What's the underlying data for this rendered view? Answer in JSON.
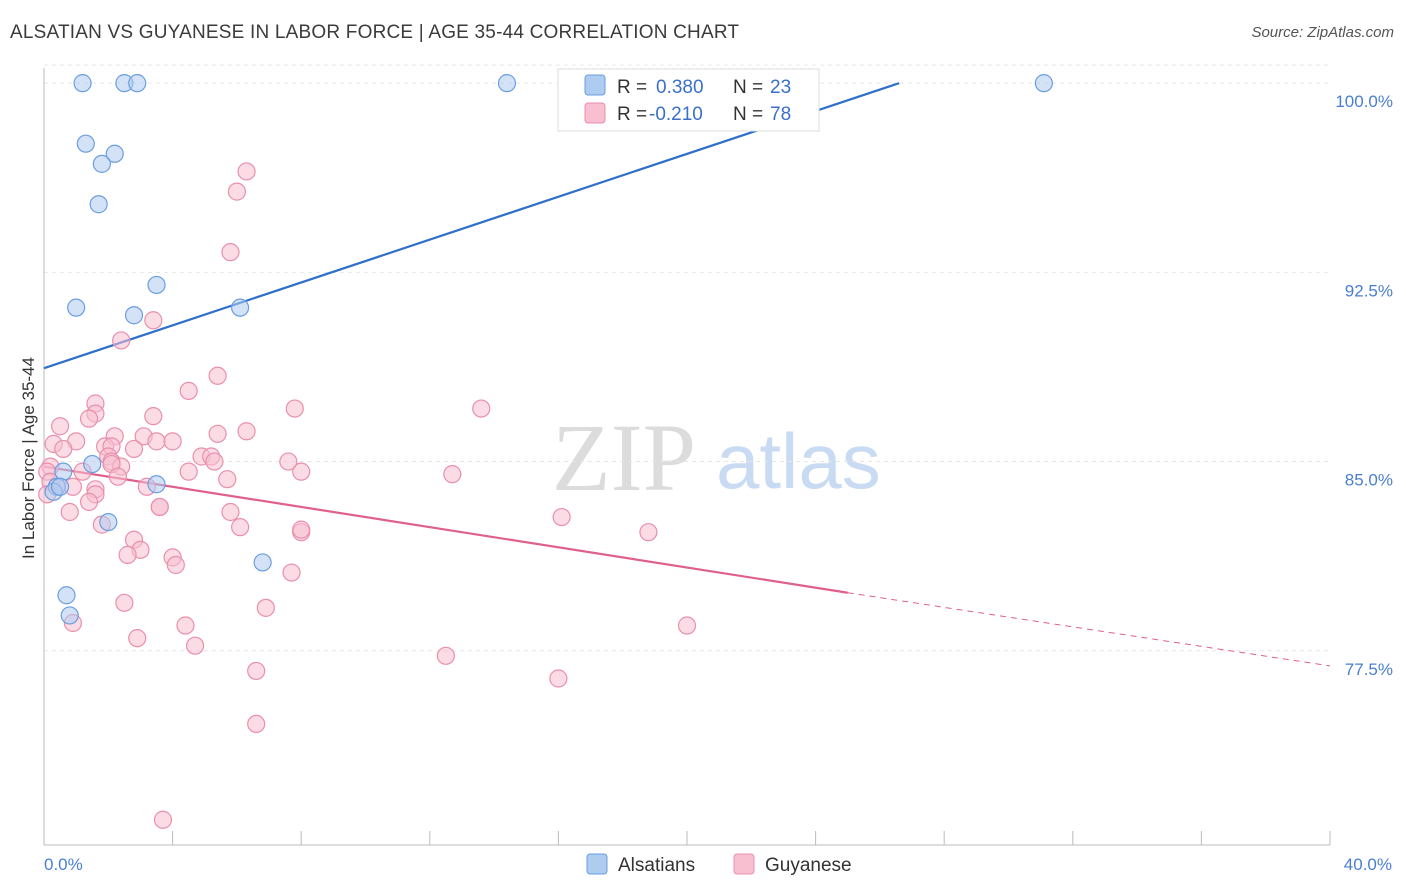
{
  "header": {
    "title": "ALSATIAN VS GUYANESE IN LABOR FORCE | AGE 35-44 CORRELATION CHART",
    "source": "Source: ZipAtlas.com"
  },
  "legend_top": {
    "r_label": "R =",
    "n_label": "N =",
    "series": [
      {
        "r": "0.380",
        "n": "23"
      },
      {
        "r": "-0.210",
        "n": "78"
      }
    ]
  },
  "watermark": {
    "zip": "ZIP",
    "atlas": "atlas"
  },
  "colors": {
    "blue_fill": "#aecbf0",
    "blue_stroke": "#6b9ee0",
    "blue_line": "#2f6fcc",
    "pink_fill": "#f7bfd0",
    "pink_stroke": "#e98fad",
    "pink_line": "#e0608d"
  },
  "chart_data": {
    "type": "scatter",
    "title": "ALSATIAN VS GUYANESE IN LABOR FORCE | AGE 35-44 CORRELATION CHART",
    "xlabel": "",
    "ylabel": "In Labor Force | Age 35-44",
    "xlim": [
      0,
      40
    ],
    "ylim": [
      69.8,
      100.6
    ],
    "x_tick_labels": [
      "0.0%",
      "40.0%"
    ],
    "y_ticks": [
      77.5,
      85.0,
      92.5,
      100.0
    ],
    "y_tick_labels": [
      "77.5%",
      "85.0%",
      "92.5%",
      "100.0%"
    ],
    "legend": [
      "Alsatians",
      "Guyanese"
    ],
    "series": [
      {
        "name": "Alsatians",
        "r": 0.38,
        "n": 23,
        "trend": {
          "x0": 0.0,
          "y0": 88.7,
          "x1": 26.6,
          "y1": 100.0
        },
        "points": [
          [
            1.2,
            100.0
          ],
          [
            2.5,
            100.0
          ],
          [
            2.9,
            100.0
          ],
          [
            14.4,
            100.0
          ],
          [
            31.1,
            100.0
          ],
          [
            1.3,
            97.6
          ],
          [
            2.2,
            97.2
          ],
          [
            1.8,
            96.8
          ],
          [
            1.7,
            95.2
          ],
          [
            3.5,
            92.0
          ],
          [
            1.0,
            91.1
          ],
          [
            2.8,
            90.8
          ],
          [
            6.1,
            91.1
          ],
          [
            0.6,
            84.6
          ],
          [
            1.5,
            84.9
          ],
          [
            0.4,
            84.0
          ],
          [
            0.3,
            83.8
          ],
          [
            0.5,
            84.0
          ],
          [
            3.5,
            84.1
          ],
          [
            2.0,
            82.6
          ],
          [
            6.8,
            81.0
          ],
          [
            0.7,
            79.7
          ],
          [
            0.8,
            78.9
          ]
        ]
      },
      {
        "name": "Guyanese",
        "r": -0.21,
        "n": 78,
        "trend": {
          "x0": 0.0,
          "y0": 84.8,
          "x1": 25.0,
          "y1": 79.8,
          "x_dash_end": 40.0,
          "y_dash_end": 76.9
        },
        "points": [
          [
            6.3,
            96.5
          ],
          [
            6.0,
            95.7
          ],
          [
            5.8,
            93.3
          ],
          [
            3.4,
            90.6
          ],
          [
            2.4,
            89.8
          ],
          [
            5.4,
            88.4
          ],
          [
            4.5,
            87.8
          ],
          [
            1.6,
            87.3
          ],
          [
            3.4,
            86.8
          ],
          [
            1.6,
            86.9
          ],
          [
            1.4,
            86.7
          ],
          [
            0.5,
            86.4
          ],
          [
            1.0,
            85.8
          ],
          [
            2.2,
            86.0
          ],
          [
            3.1,
            86.0
          ],
          [
            3.5,
            85.8
          ],
          [
            4.0,
            85.8
          ],
          [
            5.4,
            86.1
          ],
          [
            6.3,
            86.2
          ],
          [
            0.3,
            85.7
          ],
          [
            0.6,
            85.5
          ],
          [
            1.9,
            85.6
          ],
          [
            2.1,
            85.6
          ],
          [
            2.8,
            85.5
          ],
          [
            4.9,
            85.2
          ],
          [
            5.2,
            85.2
          ],
          [
            5.3,
            85.0
          ],
          [
            2.0,
            85.2
          ],
          [
            2.1,
            85.0
          ],
          [
            2.4,
            84.8
          ],
          [
            2.1,
            84.9
          ],
          [
            2.3,
            84.4
          ],
          [
            1.2,
            84.6
          ],
          [
            4.5,
            84.6
          ],
          [
            5.7,
            84.3
          ],
          [
            0.2,
            84.8
          ],
          [
            0.1,
            84.6
          ],
          [
            0.2,
            84.2
          ],
          [
            0.4,
            84.0
          ],
          [
            0.9,
            84.0
          ],
          [
            1.6,
            83.9
          ],
          [
            3.2,
            84.0
          ],
          [
            1.6,
            83.7
          ],
          [
            1.4,
            83.4
          ],
          [
            0.1,
            83.7
          ],
          [
            0.8,
            83.0
          ],
          [
            3.6,
            83.2
          ],
          [
            3.6,
            83.2
          ],
          [
            5.8,
            83.0
          ],
          [
            6.1,
            82.4
          ],
          [
            1.8,
            82.5
          ],
          [
            8.0,
            82.2
          ],
          [
            2.8,
            81.9
          ],
          [
            3.0,
            81.5
          ],
          [
            2.6,
            81.3
          ],
          [
            4.0,
            81.2
          ],
          [
            4.1,
            80.9
          ],
          [
            7.7,
            80.6
          ],
          [
            2.5,
            79.4
          ],
          [
            6.9,
            79.2
          ],
          [
            0.9,
            78.6
          ],
          [
            4.4,
            78.5
          ],
          [
            2.9,
            78.0
          ],
          [
            4.7,
            77.7
          ],
          [
            6.6,
            76.7
          ],
          [
            6.6,
            74.6
          ],
          [
            13.6,
            87.1
          ],
          [
            8.0,
            84.6
          ],
          [
            12.7,
            84.5
          ],
          [
            8.0,
            82.3
          ],
          [
            16.1,
            82.8
          ],
          [
            18.8,
            82.2
          ],
          [
            20.0,
            78.5
          ],
          [
            12.5,
            77.3
          ],
          [
            16.0,
            76.4
          ],
          [
            3.7,
            70.8
          ],
          [
            7.8,
            87.1
          ],
          [
            7.6,
            85.0
          ]
        ]
      }
    ]
  }
}
